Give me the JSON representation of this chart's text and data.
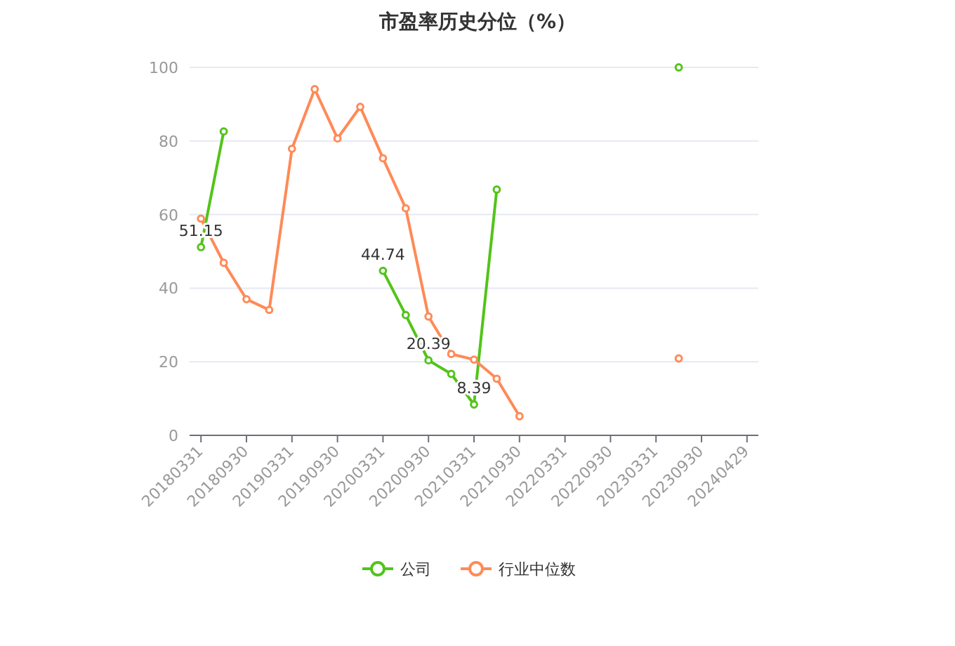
{
  "chart_data": {
    "type": "line",
    "title": "市盈率历史分位（%）",
    "categories": [
      "20180331",
      null,
      "20180930",
      null,
      "20190331",
      null,
      "20190930",
      null,
      "20200331",
      null,
      "20200930",
      null,
      "20210331",
      null,
      "20210930",
      null,
      "20220331",
      null,
      "20220930",
      null,
      "20230331",
      null,
      "20230930",
      null,
      "20240429"
    ],
    "series": [
      {
        "name": "公司",
        "color": "#52c41a",
        "values": [
          51.15,
          82.6,
          null,
          null,
          null,
          null,
          null,
          null,
          44.74,
          32.7,
          20.39,
          16.7,
          8.39,
          66.8,
          null,
          null,
          null,
          null,
          null,
          null,
          null,
          100,
          null,
          null,
          null
        ],
        "value_labels": [
          "51.15",
          null,
          null,
          null,
          null,
          null,
          null,
          null,
          "44.74",
          null,
          "20.39",
          null,
          "8.39",
          null,
          null,
          null,
          null,
          null,
          null,
          null,
          null,
          null,
          null,
          null,
          null
        ]
      },
      {
        "name": "行业中位数",
        "color": "#ff8a57",
        "values": [
          58.9,
          46.9,
          37,
          34.1,
          77.9,
          94.1,
          80.7,
          89.3,
          75.3,
          61.7,
          32.3,
          22.1,
          20.6,
          15.4,
          5.2,
          null,
          null,
          null,
          null,
          null,
          null,
          20.9,
          null,
          null,
          null
        ]
      }
    ],
    "ylim": [
      0,
      100
    ],
    "yticks": [
      0,
      20,
      40,
      60,
      80,
      100
    ],
    "grid": "y",
    "legend": "bottom",
    "marker": "circle",
    "line_style": "solid"
  }
}
